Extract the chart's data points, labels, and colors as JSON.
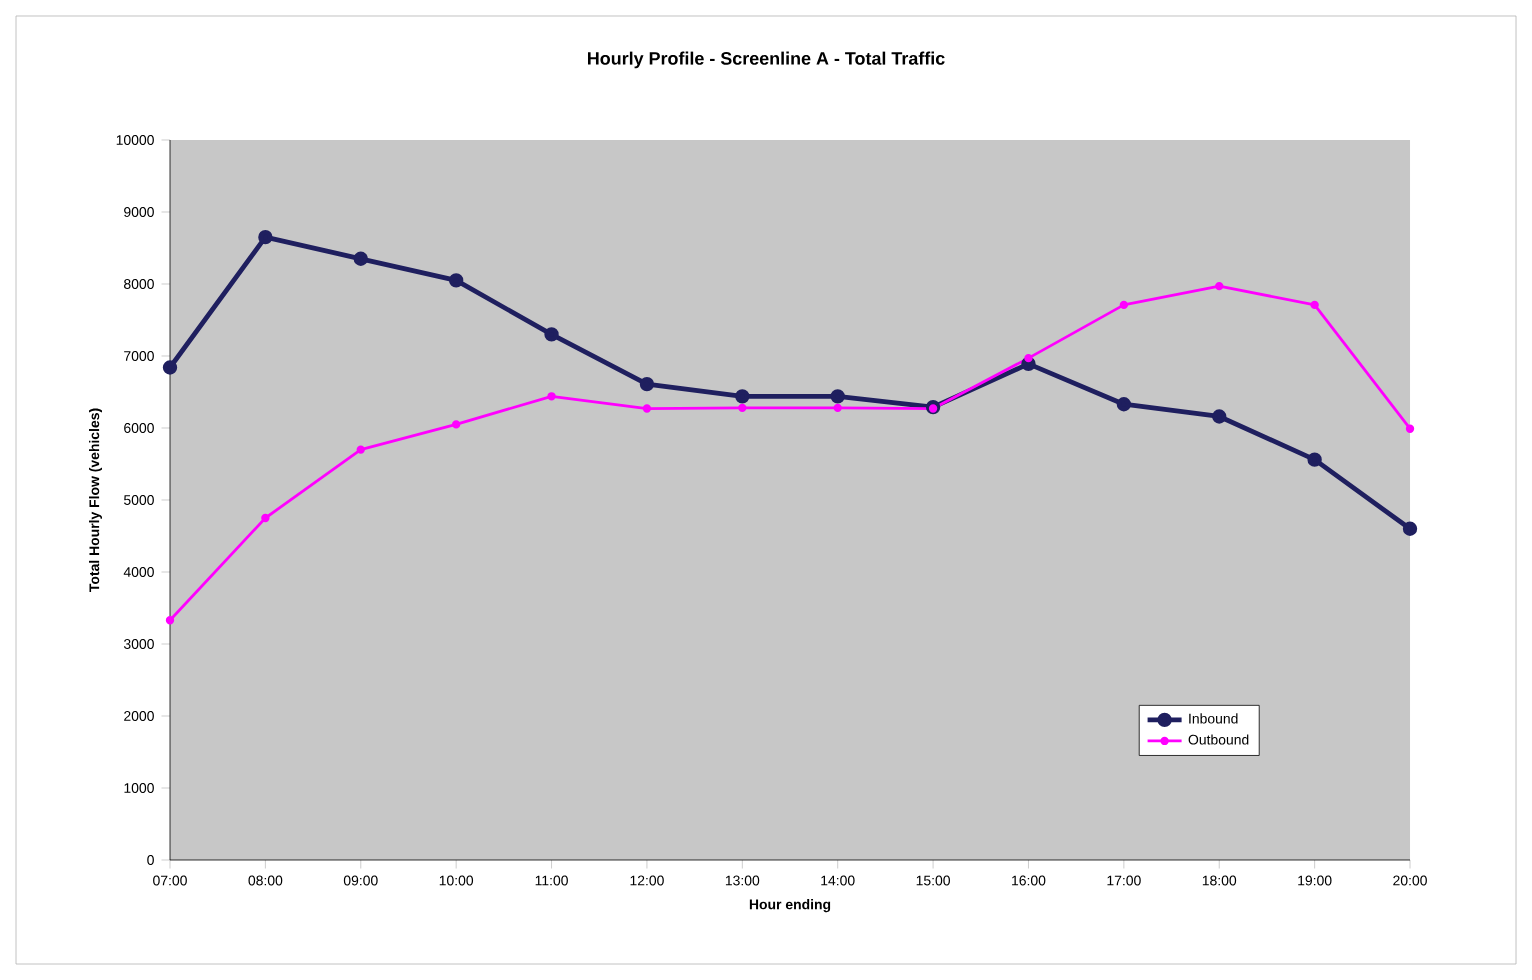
{
  "chart_data": {
    "type": "line",
    "title": "Hourly Profile - Screenline A - Total Traffic",
    "xlabel": "Hour ending",
    "ylabel": "Total Hourly Flow (vehicles)",
    "categories": [
      "07:00",
      "08:00",
      "09:00",
      "10:00",
      "11:00",
      "12:00",
      "13:00",
      "14:00",
      "15:00",
      "16:00",
      "17:00",
      "18:00",
      "19:00",
      "20:00"
    ],
    "series": [
      {
        "name": "Inbound",
        "color": "#1f1f5f",
        "values": [
          6840,
          8650,
          8350,
          8050,
          7300,
          6610,
          6440,
          6440,
          6290,
          6890,
          6330,
          6160,
          5560,
          4600
        ]
      },
      {
        "name": "Outbound",
        "color": "#ff00ff",
        "values": [
          3330,
          4750,
          5700,
          6050,
          6440,
          6270,
          6280,
          6280,
          6270,
          6970,
          7710,
          7970,
          7710,
          5990
        ]
      }
    ],
    "ylim": [
      0,
      10000
    ],
    "yticks": [
      0,
      1000,
      2000,
      3000,
      4000,
      5000,
      6000,
      7000,
      8000,
      9000,
      10000
    ],
    "grid": false,
    "legend": "bottom right",
    "marker": "circle",
    "line_style": "solid"
  }
}
